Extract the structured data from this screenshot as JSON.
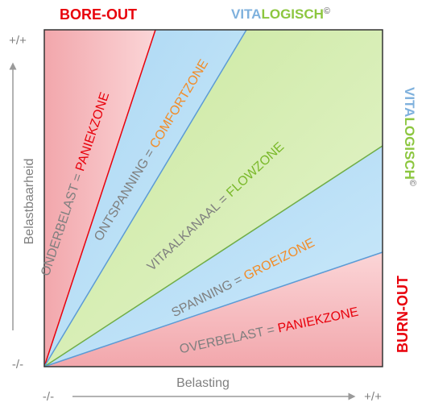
{
  "header": {
    "left_title": "BORE-OUT",
    "brand_vita": "VITA",
    "brand_logisch": "LOGISCH",
    "brand_mark": "©"
  },
  "side": {
    "brand_vita": "VITA",
    "brand_logisch": "LOGISCH",
    "brand_mark": "©",
    "right_title": "BURN-OUT"
  },
  "axes": {
    "y_label": "Belastbaarheid",
    "x_label": "Belasting",
    "y_top": "+/+",
    "y_bottom": "-/-",
    "x_left": "-/-",
    "x_right": "+/+"
  },
  "zones": [
    {
      "term": "ONDERBELAST",
      "eq": " = ",
      "zone": "PANIEKZONE",
      "zone_color": "#e8000b"
    },
    {
      "term": "ONTSPANNING",
      "eq": " = ",
      "zone": "COMFORTZONE",
      "zone_color": "#f28c28"
    },
    {
      "term": "VITAALKANAAL",
      "eq": " = ",
      "zone": "FLOWZONE",
      "zone_color": "#79b829"
    },
    {
      "term": "SPANNING",
      "eq": " = ",
      "zone": "GROEIZONE",
      "zone_color": "#f28c28"
    },
    {
      "term": "OVERBELAST",
      "eq": " = ",
      "zone": "PANIEKZONE",
      "zone_color": "#e8000b"
    }
  ],
  "colors": {
    "red": "#e8000b",
    "blue": "#7fb1dd",
    "green": "#8cc63f",
    "orange": "#f28c28",
    "label_gray": "#7f7f7f"
  }
}
